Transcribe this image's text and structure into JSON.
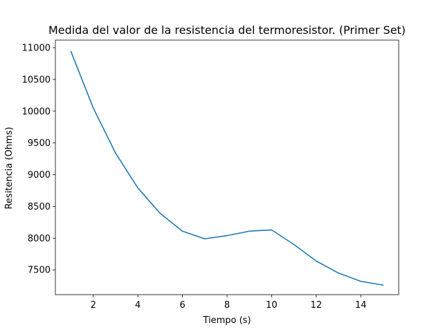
{
  "chart_data": {
    "type": "line",
    "title": "Medida del valor de la resistencia del termoresistor. (Primer Set)",
    "xlabel": "Tiempo (s)",
    "ylabel": "Resitencia (Ohms)",
    "xlim": [
      0.3,
      15.7
    ],
    "ylim": [
      7110,
      11120
    ],
    "xticks": [
      2,
      4,
      6,
      8,
      10,
      12,
      14
    ],
    "yticks": [
      7500,
      8000,
      8500,
      9000,
      9500,
      10000,
      10500,
      11000
    ],
    "grid": false,
    "line_color": "#1f77b4",
    "series": [
      {
        "x": [
          1,
          2,
          3,
          4,
          5,
          6,
          7,
          8,
          9,
          10,
          11,
          12,
          13,
          14,
          15
        ],
        "values": [
          10940,
          10050,
          9340,
          8790,
          8390,
          8110,
          7990,
          8040,
          8110,
          8130,
          7900,
          7640,
          7450,
          7320,
          7260
        ]
      }
    ]
  }
}
